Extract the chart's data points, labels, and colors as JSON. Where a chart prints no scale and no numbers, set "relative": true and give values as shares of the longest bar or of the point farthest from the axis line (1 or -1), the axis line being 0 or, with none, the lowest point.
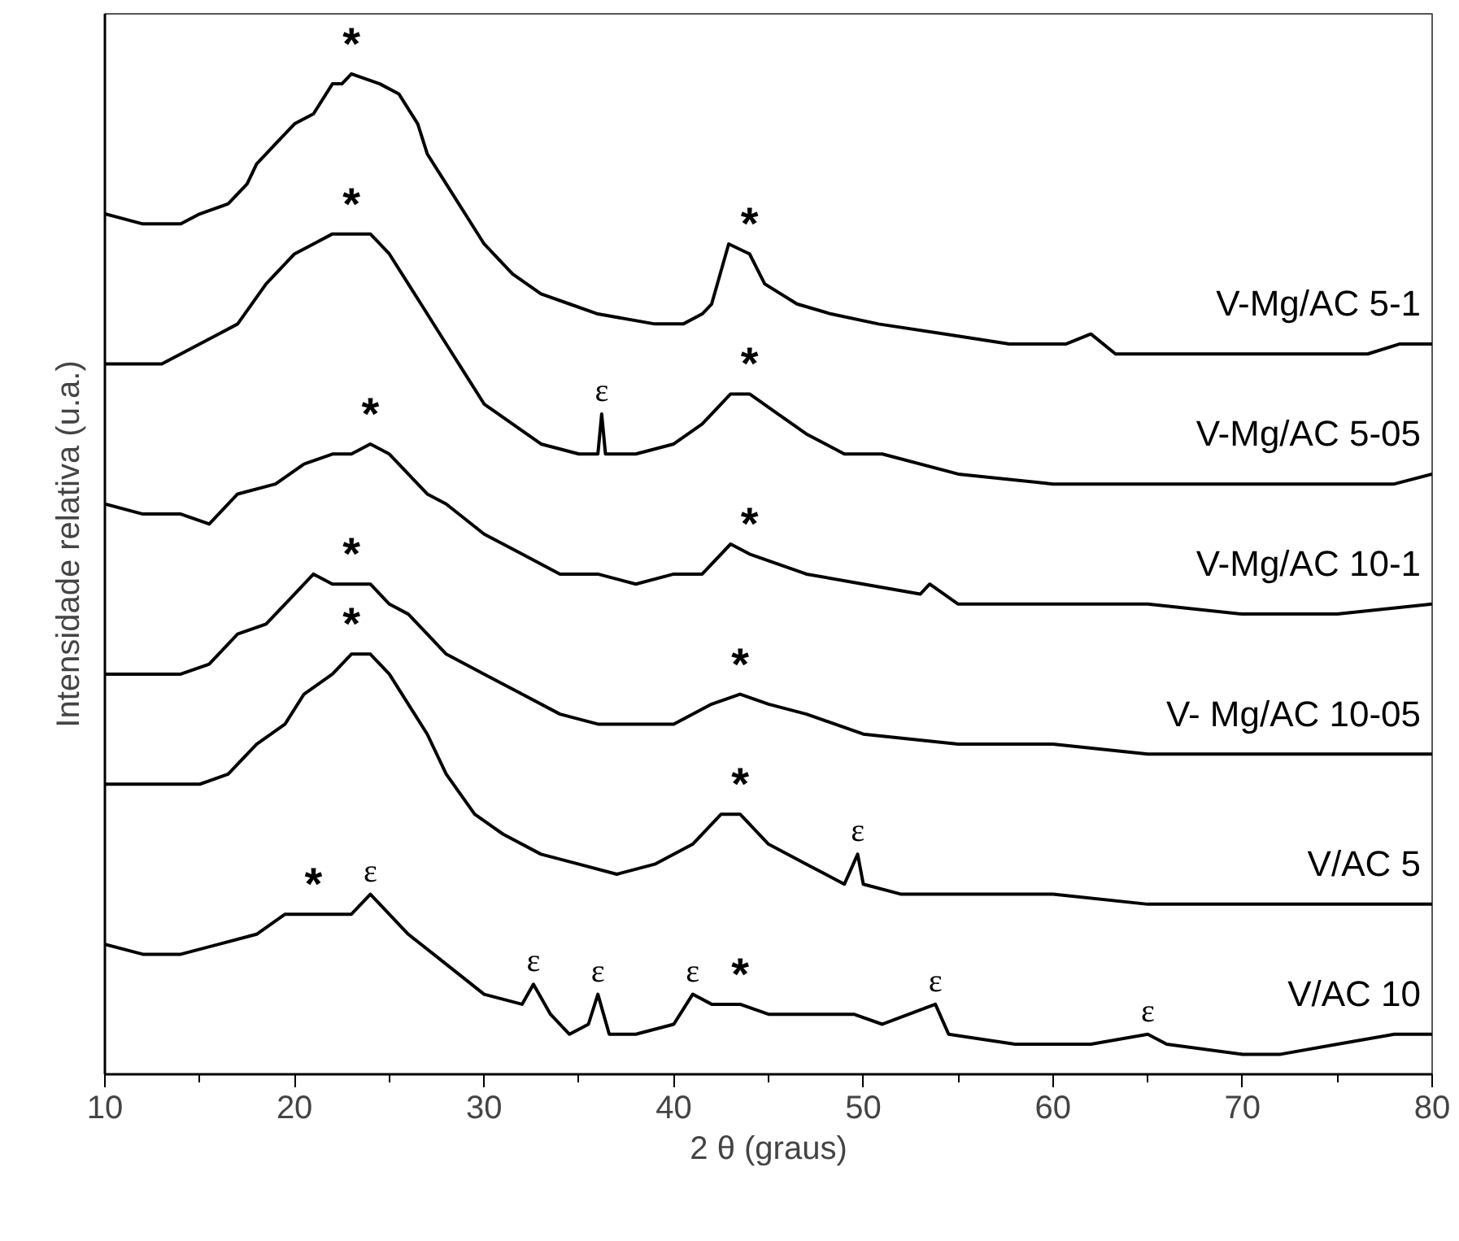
{
  "chart_data": {
    "type": "line",
    "relative": true,
    "xlabel": "2 θ (graus)",
    "ylabel": "Intensidade relativa (u.a.)",
    "xlim": [
      10,
      80
    ],
    "xticks": [
      10,
      20,
      30,
      40,
      50,
      60,
      70,
      80
    ],
    "grid": false,
    "legend": false,
    "marker": "none",
    "line_style": "solid",
    "series": [
      {
        "name": "V-Mg/AC 5-1",
        "color": "#000000",
        "x": [
          10,
          12,
          14,
          15,
          16.5,
          17.5,
          18,
          19,
          20,
          21,
          22,
          22.5,
          23,
          24.5,
          25.5,
          26.5,
          27,
          28,
          29,
          30,
          31.5,
          33,
          34.5,
          36,
          39,
          40.5,
          41.5,
          42,
          42.9,
          44,
          44.8,
          46.5,
          48.3,
          50.8,
          54.3,
          57.7,
          60.7,
          62,
          63.3,
          68,
          73.1,
          76.6,
          78.3,
          80
        ],
        "values": [
          0.86,
          0.85,
          0.85,
          0.86,
          0.87,
          0.89,
          0.91,
          0.93,
          0.95,
          0.96,
          0.99,
          0.99,
          1.0,
          0.99,
          0.98,
          0.95,
          0.92,
          0.89,
          0.86,
          0.83,
          0.8,
          0.78,
          0.77,
          0.76,
          0.75,
          0.75,
          0.76,
          0.77,
          0.83,
          0.82,
          0.79,
          0.77,
          0.76,
          0.75,
          0.74,
          0.73,
          0.73,
          0.74,
          0.72,
          0.72,
          0.72,
          0.72,
          0.73,
          0.73
        ]
      },
      {
        "name": "V-Mg/AC 5-05",
        "color": "#000000",
        "x": [
          10,
          13,
          15,
          16,
          17,
          18.5,
          20,
          21,
          22,
          23,
          24,
          25,
          26,
          27,
          28,
          29,
          30,
          31.5,
          33,
          35,
          36,
          36.2,
          36.4,
          38,
          40,
          41.5,
          43,
          44,
          45.5,
          47,
          49,
          51,
          55,
          60,
          65,
          70,
          75,
          78,
          80
        ],
        "values": [
          0.71,
          0.71,
          0.73,
          0.74,
          0.75,
          0.79,
          0.82,
          0.83,
          0.84,
          0.84,
          0.84,
          0.82,
          0.79,
          0.76,
          0.73,
          0.7,
          0.67,
          0.65,
          0.63,
          0.62,
          0.62,
          0.66,
          0.62,
          0.62,
          0.63,
          0.65,
          0.68,
          0.68,
          0.66,
          0.64,
          0.62,
          0.62,
          0.6,
          0.59,
          0.59,
          0.59,
          0.59,
          0.59,
          0.6
        ]
      },
      {
        "name": "V-Mg/AC 10-1",
        "color": "#000000",
        "x": [
          10,
          12,
          14,
          15.5,
          17,
          19,
          20.5,
          22,
          23,
          24,
          25,
          26,
          27,
          28,
          30,
          32,
          34,
          36,
          38,
          40,
          41.5,
          43,
          44,
          45.5,
          47,
          50,
          53,
          53.5,
          55,
          60,
          65,
          70,
          75,
          80
        ],
        "values": [
          0.57,
          0.56,
          0.56,
          0.55,
          0.58,
          0.59,
          0.61,
          0.62,
          0.62,
          0.63,
          0.62,
          0.6,
          0.58,
          0.57,
          0.54,
          0.52,
          0.5,
          0.5,
          0.49,
          0.5,
          0.5,
          0.53,
          0.52,
          0.51,
          0.5,
          0.49,
          0.48,
          0.49,
          0.47,
          0.47,
          0.47,
          0.46,
          0.46,
          0.47
        ]
      },
      {
        "name": "V- Mg/AC 10-05",
        "color": "#000000",
        "x": [
          10,
          12,
          14,
          15.5,
          17,
          18.5,
          20,
          21,
          22,
          23,
          24,
          25,
          26,
          27,
          28,
          30,
          32,
          34,
          36,
          38,
          40,
          42,
          43.5,
          45,
          47,
          50,
          55,
          60,
          65,
          70,
          75,
          80
        ],
        "values": [
          0.4,
          0.4,
          0.4,
          0.41,
          0.44,
          0.45,
          0.48,
          0.5,
          0.49,
          0.49,
          0.49,
          0.47,
          0.46,
          0.44,
          0.42,
          0.4,
          0.38,
          0.36,
          0.35,
          0.35,
          0.35,
          0.37,
          0.38,
          0.37,
          0.36,
          0.34,
          0.33,
          0.33,
          0.32,
          0.32,
          0.32,
          0.32
        ]
      },
      {
        "name": "V/AC 5",
        "color": "#000000",
        "x": [
          10,
          12,
          14,
          15,
          16.5,
          18,
          19.5,
          20.5,
          22,
          23,
          24,
          25,
          26,
          27,
          28,
          29.5,
          31,
          33,
          35,
          37,
          39,
          41,
          42.5,
          43.5,
          45,
          47,
          49,
          49.7,
          50,
          52,
          55,
          60,
          65,
          70,
          75,
          80
        ],
        "values": [
          0.29,
          0.29,
          0.29,
          0.29,
          0.3,
          0.33,
          0.35,
          0.38,
          0.4,
          0.42,
          0.42,
          0.4,
          0.37,
          0.34,
          0.3,
          0.26,
          0.24,
          0.22,
          0.21,
          0.2,
          0.21,
          0.23,
          0.26,
          0.26,
          0.23,
          0.21,
          0.19,
          0.22,
          0.19,
          0.18,
          0.18,
          0.18,
          0.17,
          0.17,
          0.17,
          0.17
        ]
      },
      {
        "name": "V/AC 10",
        "color": "#000000",
        "x": [
          10,
          12,
          14,
          16,
          18,
          19.5,
          21,
          22,
          23,
          24,
          24.5,
          26,
          28,
          30,
          32,
          32.6,
          33.5,
          34.5,
          35.5,
          36,
          36.6,
          38,
          40,
          41,
          42,
          43.5,
          45,
          47,
          49.5,
          51,
          53.8,
          54.5,
          58,
          62,
          65,
          66,
          70,
          72,
          75,
          78,
          80
        ],
        "values": [
          0.13,
          0.12,
          0.12,
          0.13,
          0.14,
          0.16,
          0.16,
          0.16,
          0.16,
          0.18,
          0.17,
          0.14,
          0.11,
          0.08,
          0.07,
          0.09,
          0.06,
          0.04,
          0.05,
          0.08,
          0.04,
          0.04,
          0.05,
          0.08,
          0.07,
          0.07,
          0.06,
          0.06,
          0.06,
          0.05,
          0.07,
          0.04,
          0.03,
          0.03,
          0.04,
          0.03,
          0.02,
          0.02,
          0.03,
          0.04,
          0.04
        ]
      }
    ],
    "annotations": [
      {
        "text": "*",
        "x": 23,
        "y": 1.0
      },
      {
        "text": "*",
        "x": 23,
        "y": 0.84
      },
      {
        "text": "*",
        "x": 44,
        "y": 0.82
      },
      {
        "text": "*",
        "x": 24,
        "y": 0.63
      },
      {
        "text": "ε",
        "x": 36.2,
        "y": 0.66
      },
      {
        "text": "*",
        "x": 44,
        "y": 0.68
      },
      {
        "text": "*",
        "x": 23,
        "y": 0.49
      },
      {
        "text": "*",
        "x": 44,
        "y": 0.52
      },
      {
        "text": "*",
        "x": 23,
        "y": 0.42
      },
      {
        "text": "*",
        "x": 43.5,
        "y": 0.38
      },
      {
        "text": "*",
        "x": 43.5,
        "y": 0.26
      },
      {
        "text": "ε",
        "x": 49.7,
        "y": 0.22
      },
      {
        "text": "*",
        "x": 21,
        "y": 0.16
      },
      {
        "text": "ε",
        "x": 24,
        "y": 0.18
      },
      {
        "text": "ε",
        "x": 32.6,
        "y": 0.09
      },
      {
        "text": "ε",
        "x": 36,
        "y": 0.08
      },
      {
        "text": "ε",
        "x": 41,
        "y": 0.08
      },
      {
        "text": "*",
        "x": 43.5,
        "y": 0.07
      },
      {
        "text": "ε",
        "x": 53.8,
        "y": 0.07
      },
      {
        "text": "ε",
        "x": 65,
        "y": 0.04
      }
    ]
  }
}
